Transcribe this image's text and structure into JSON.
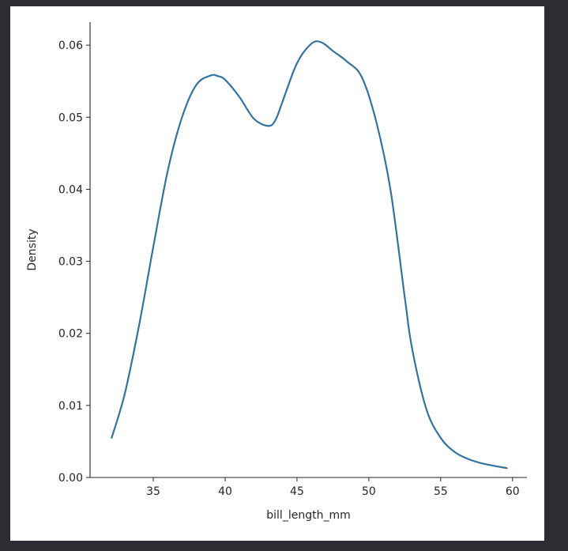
{
  "chart_data": {
    "type": "line",
    "title": "",
    "xlabel": "bill_length_mm",
    "ylabel": "Density",
    "xlim": [
      30.6,
      61.0
    ],
    "ylim": [
      0.0,
      0.0632
    ],
    "x_ticks": [
      35,
      40,
      45,
      50,
      55,
      60
    ],
    "y_ticks": [
      0.0,
      0.01,
      0.02,
      0.03,
      0.04,
      0.05,
      0.06
    ],
    "x_tick_labels": [
      "35",
      "40",
      "45",
      "50",
      "55",
      "60"
    ],
    "y_tick_labels": [
      "0.00",
      "0.01",
      "0.02",
      "0.03",
      "0.04",
      "0.05",
      "0.06"
    ],
    "grid": false,
    "line_color": "#3274a1",
    "series": [
      {
        "x": [
          32.1,
          33.0,
          34.0,
          35.0,
          36.0,
          37.0,
          38.0,
          39.0,
          39.5,
          40.0,
          41.0,
          42.0,
          43.0,
          43.5,
          44.0,
          45.0,
          46.0,
          46.7,
          47.5,
          48.5,
          49.5,
          50.5,
          51.5,
          52.5,
          53.0,
          54.0,
          55.0,
          56.0,
          57.0,
          58.0,
          59.6
        ],
        "y": [
          0.0055,
          0.0115,
          0.021,
          0.032,
          0.0425,
          0.05,
          0.0545,
          0.0558,
          0.0557,
          0.0552,
          0.0528,
          0.0498,
          0.0488,
          0.0496,
          0.0522,
          0.0575,
          0.0602,
          0.0604,
          0.0592,
          0.0577,
          0.0556,
          0.0495,
          0.04,
          0.025,
          0.018,
          0.0095,
          0.0055,
          0.0035,
          0.0025,
          0.0019,
          0.0013
        ]
      }
    ]
  }
}
